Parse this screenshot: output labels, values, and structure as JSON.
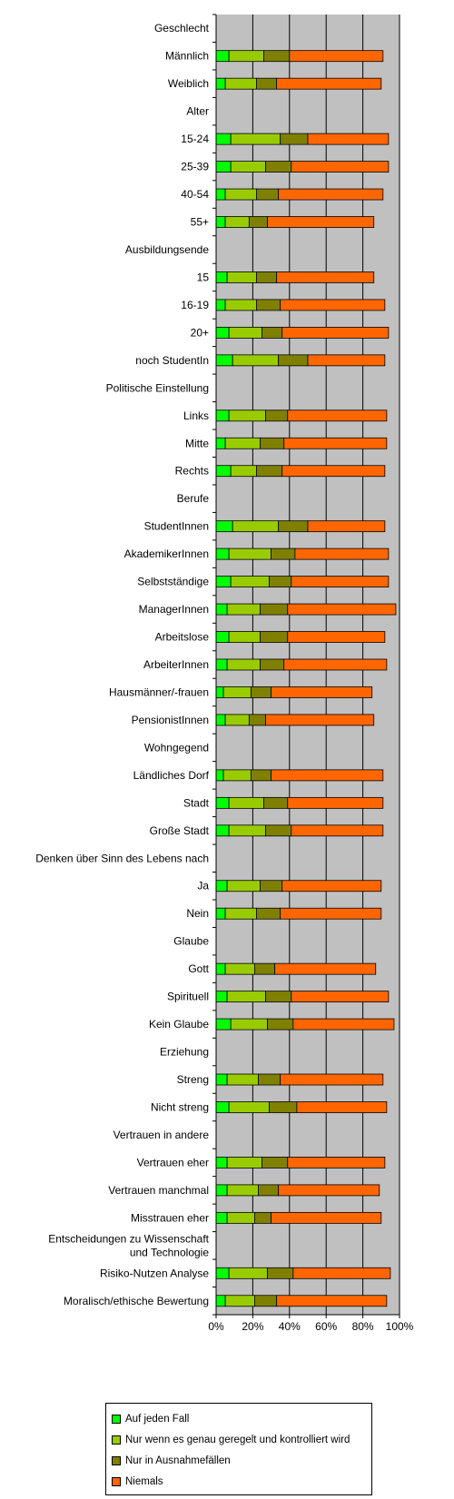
{
  "chart_data": {
    "type": "bar",
    "orientation": "horizontal",
    "stacked": true,
    "xlim": [
      0,
      100
    ],
    "x_tick_labels": [
      "0%",
      "20%",
      "40%",
      "60%",
      "80%",
      "100%"
    ],
    "grid": true,
    "legend_placement": "bottom",
    "categories": [
      "Geschlecht",
      "Männlich",
      "Weiblich",
      "Alter",
      "15-24",
      "25-39",
      "40-54",
      "55+",
      "Ausbildungsende",
      "15",
      "16-19",
      "20+",
      "noch StudentIn",
      "Politische Einstellung",
      "Links",
      "Mitte",
      "Rechts",
      "Berufe",
      "StudentInnen",
      "AkademikerInnen",
      "Selbstständige",
      "ManagerInnen",
      "Arbeitslose",
      "ArbeiterInnen",
      "Hausmänner/-frauen",
      "PensionistInnen",
      "Wohngegend",
      "Ländliches Dorf",
      "Stadt",
      "Große Stadt",
      "Denken über Sinn des Lebens nach",
      "Ja",
      "Nein",
      "Glaube",
      "Gott",
      "Spirituell",
      "Kein Glaube",
      "Erziehung",
      "Streng",
      "Nicht streng",
      "Vertrauen in andere",
      "Vertrauen eher",
      "Vertrauen manchmal",
      "Misstrauen eher",
      "Entscheidungen zu Wissenschaft und Technologie",
      "Risiko-Nutzen Analyse",
      "Moralisch/ethische Bewertung"
    ],
    "series": [
      {
        "name": "Auf jeden Fall",
        "color": "#00ff00",
        "values": [
          null,
          7,
          5,
          null,
          8,
          8,
          5,
          5,
          null,
          6,
          5,
          7,
          9,
          null,
          7,
          5,
          8,
          null,
          9,
          7,
          8,
          6,
          7,
          6,
          4,
          5,
          null,
          4,
          7,
          7,
          null,
          6,
          5,
          null,
          5,
          6,
          8,
          null,
          6,
          7,
          null,
          6,
          6,
          6,
          null,
          7,
          5
        ]
      },
      {
        "name": "Nur wenn es genau geregelt und kontrolliert wird",
        "color": "#99cc00",
        "values": [
          null,
          19,
          17,
          null,
          27,
          19,
          17,
          13,
          null,
          16,
          17,
          18,
          25,
          null,
          20,
          19,
          14,
          null,
          25,
          23,
          21,
          18,
          17,
          18,
          15,
          13,
          null,
          15,
          19,
          20,
          null,
          18,
          17,
          null,
          16,
          21,
          20,
          null,
          17,
          22,
          null,
          19,
          17,
          15,
          null,
          21,
          16
        ]
      },
      {
        "name": "Nur in Ausnahmefällen",
        "color": "#808000",
        "values": [
          null,
          14,
          11,
          null,
          15,
          14,
          12,
          10,
          null,
          11,
          13,
          11,
          16,
          null,
          12,
          13,
          14,
          null,
          16,
          13,
          12,
          15,
          15,
          13,
          11,
          9,
          null,
          11,
          13,
          14,
          null,
          12,
          13,
          null,
          11,
          14,
          14,
          null,
          12,
          15,
          null,
          14,
          11,
          9,
          null,
          14,
          12
        ]
      },
      {
        "name": "Niemals",
        "color": "#ff6600",
        "values": [
          null,
          51,
          57,
          null,
          44,
          53,
          57,
          58,
          null,
          53,
          57,
          58,
          42,
          null,
          54,
          56,
          56,
          null,
          42,
          51,
          53,
          59,
          53,
          56,
          55,
          59,
          null,
          61,
          52,
          50,
          null,
          54,
          55,
          null,
          55,
          53,
          55,
          null,
          56,
          49,
          null,
          53,
          55,
          60,
          null,
          53,
          60
        ]
      }
    ]
  },
  "legend": {
    "items": [
      {
        "label": "Auf jeden Fall",
        "color": "#00ff00"
      },
      {
        "label": "Nur wenn es genau geregelt und kontrolliert wird",
        "color": "#99cc00"
      },
      {
        "label": "Nur in Ausnahmefällen",
        "color": "#808000"
      },
      {
        "label": "Niemals",
        "color": "#ff6600"
      }
    ]
  }
}
